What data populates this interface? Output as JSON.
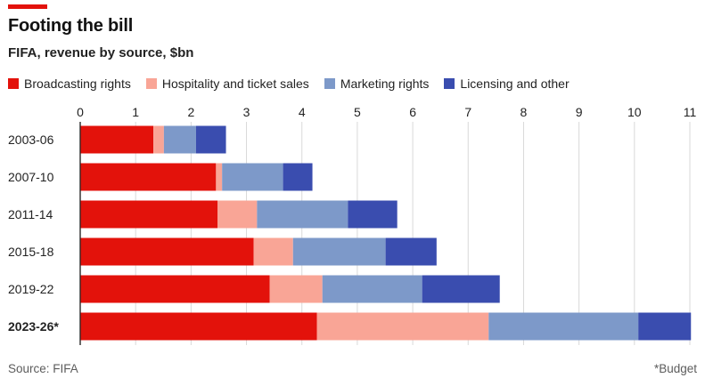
{
  "header": {
    "title": "Footing the bill",
    "subtitle": "FIFA, revenue by source, $bn"
  },
  "colors": {
    "accent": "#e3120b",
    "grid": "#d9d9d9",
    "axis": "#222222"
  },
  "footer": {
    "source": "Source: FIFA",
    "note": "*Budget"
  },
  "chart_data": {
    "type": "bar",
    "orientation": "horizontal",
    "stacked": true,
    "categories": [
      "2003-06",
      "2007-10",
      "2011-14",
      "2015-18",
      "2019-22",
      "2023-26*"
    ],
    "emphasized_category": "2023-26*",
    "series": [
      {
        "name": "Broadcasting rights",
        "color": "#e3120b",
        "values": [
          1.32,
          2.45,
          2.48,
          3.13,
          3.42,
          4.27
        ]
      },
      {
        "name": "Hospitality and ticket sales",
        "color": "#f9a596",
        "values": [
          0.19,
          0.11,
          0.71,
          0.71,
          0.95,
          3.1
        ]
      },
      {
        "name": "Marketing rights",
        "color": "#7d99c9",
        "values": [
          0.58,
          1.1,
          1.64,
          1.67,
          1.8,
          2.7
        ]
      },
      {
        "name": "Licensing and other",
        "color": "#3a4daf",
        "values": [
          0.54,
          0.53,
          0.89,
          0.92,
          1.4,
          0.95
        ]
      }
    ],
    "xlim": [
      0,
      11
    ],
    "xticks": [
      0,
      1,
      2,
      3,
      4,
      5,
      6,
      7,
      8,
      9,
      10,
      11
    ],
    "xlabel": "",
    "ylabel": "",
    "axis_position": "top",
    "grid": true,
    "legend_position": "top"
  }
}
